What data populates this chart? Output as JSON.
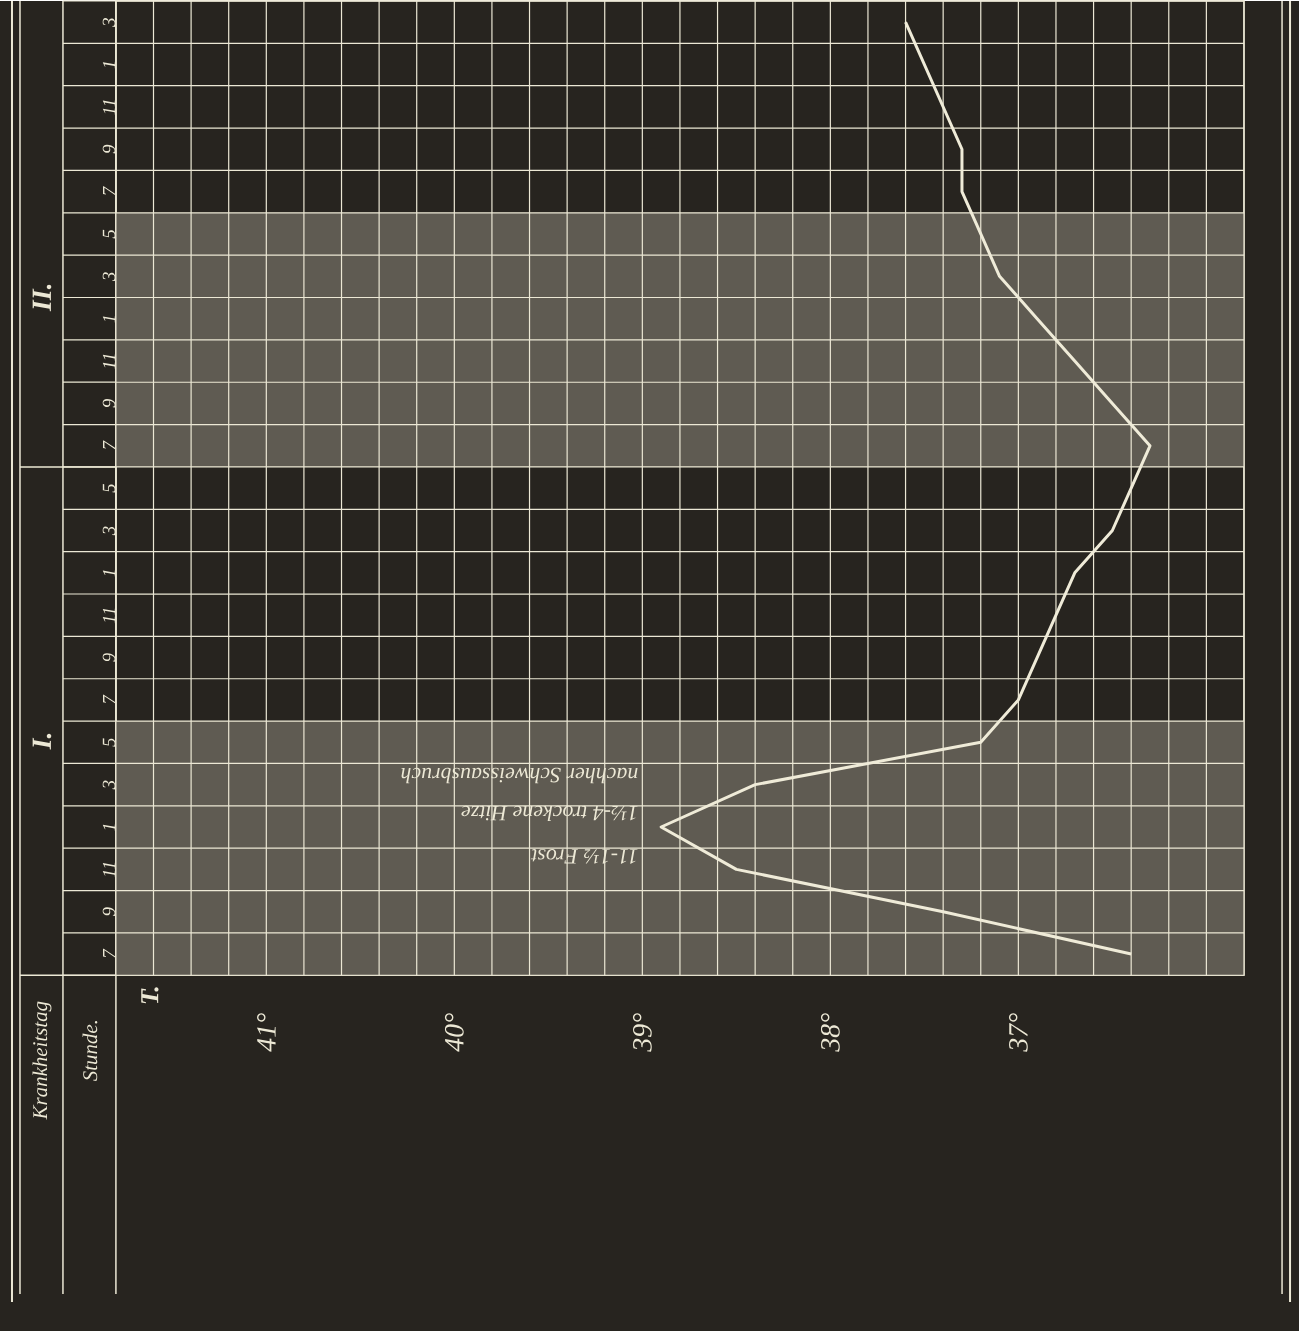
{
  "chart_data": {
    "type": "line",
    "orientation": "horizontal",
    "categories": [
      "3",
      "1",
      "11",
      "9",
      "7",
      "5",
      "3",
      "1",
      "11",
      "9",
      "7",
      "5",
      "3",
      "1",
      "11",
      "9",
      "7",
      "5",
      "3",
      "1",
      "11",
      "9",
      "7"
    ],
    "series": [
      {
        "color": "#efebd8",
        "values": [
          37.6,
          37.5,
          37.4,
          37.3,
          37.3,
          37.2,
          37.1,
          36.9,
          36.7,
          36.5,
          36.3,
          36.4,
          36.5,
          36.7,
          36.8,
          36.9,
          37.0,
          37.2,
          38.4,
          38.9,
          38.5,
          37.4,
          36.4
        ]
      }
    ],
    "xlim": [
      41.8,
      35.8
    ],
    "xticks": [
      {
        "value": 35.8,
        "label": null
      },
      {
        "value": 36.0,
        "label": null
      },
      {
        "value": 36.2,
        "label": null
      },
      {
        "value": 36.4,
        "label": null
      },
      {
        "value": 36.6,
        "label": null
      },
      {
        "value": 36.8,
        "label": null
      },
      {
        "value": 37,
        "label": "37°"
      },
      {
        "value": 37.2,
        "label": null
      },
      {
        "value": 37.4,
        "label": null
      },
      {
        "value": 37.6,
        "label": null
      },
      {
        "value": 37.8,
        "label": null
      },
      {
        "value": 38,
        "label": "38°"
      },
      {
        "value": 38.2,
        "label": null
      },
      {
        "value": 38.4,
        "label": null
      },
      {
        "value": 38.6,
        "label": null
      },
      {
        "value": 38.8,
        "label": null
      },
      {
        "value": 39,
        "label": "39°"
      },
      {
        "value": 39.2,
        "label": null
      },
      {
        "value": 39.4,
        "label": null
      },
      {
        "value": 39.6,
        "label": null
      },
      {
        "value": 39.8,
        "label": null
      },
      {
        "value": 40,
        "label": "40°"
      },
      {
        "value": 40.2,
        "label": null
      },
      {
        "value": 40.4,
        "label": null
      },
      {
        "value": 40.6,
        "label": null
      },
      {
        "value": 40.8,
        "label": null
      },
      {
        "value": 41,
        "label": "41°"
      },
      {
        "value": 41.2,
        "label": null
      },
      {
        "value": 41.4,
        "label": null
      },
      {
        "value": 41.6,
        "label": null
      },
      {
        "value": 41.8,
        "label": null
      }
    ],
    "annotations": [
      "11-1½ Frost",
      "1½-4 trockene Hitze",
      "nachher Schweissausbruch",
      "Krankheitstag",
      "Stunde.",
      "T.",
      "I.",
      "II."
    ],
    "grid": true,
    "marker": "none",
    "line_style": "solid"
  }
}
